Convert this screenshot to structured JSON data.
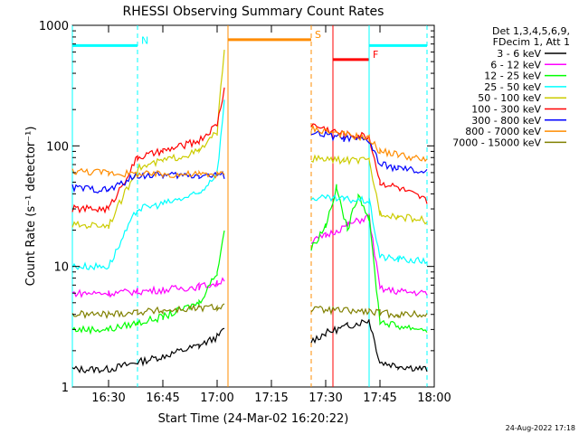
{
  "chart_data": {
    "type": "line",
    "title": "RHESSI Observing Summary Count Rates",
    "xlabel": "Start Time (24-Mar-02 16:20:22)",
    "ylabel": "Count Rate (s⁻¹ detector⁻¹)",
    "y_scale": "log",
    "ylim": [
      1,
      1000
    ],
    "xlim": [
      "16:20",
      "18:00"
    ],
    "x_ticks": [
      "16:30",
      "16:45",
      "17:00",
      "17:15",
      "17:30",
      "17:45",
      "18:00"
    ],
    "y_ticks": [
      "1",
      "10",
      "100",
      "1000"
    ],
    "grid": false,
    "legend_header": [
      "Det 1,3,4,5,6,9,",
      "FDecim 1, Att 1"
    ],
    "legend_position": "right",
    "series": [
      {
        "name": "3 - 6 keV",
        "color": "#000000",
        "x": [
          "16:20",
          "16:30",
          "16:38",
          "16:45",
          "16:55",
          "17:00",
          "17:02",
          "17:26",
          "17:30",
          "17:36",
          "17:42",
          "17:45",
          "17:50",
          "17:58"
        ],
        "y": [
          1.4,
          1.4,
          1.6,
          1.8,
          2.2,
          2.6,
          3,
          2.4,
          2.8,
          3.2,
          3.6,
          1.6,
          1.5,
          1.4
        ]
      },
      {
        "name": "6 - 12 keV",
        "color": "#ff00ff",
        "x": [
          "16:20",
          "16:30",
          "16:38",
          "16:45",
          "16:55",
          "17:00",
          "17:02",
          "17:26",
          "17:30",
          "17:36",
          "17:42",
          "17:45",
          "17:50",
          "17:58"
        ],
        "y": [
          6,
          6,
          6.2,
          6.4,
          6.8,
          7.2,
          8,
          16,
          18,
          22,
          26,
          6.5,
          6.2,
          6
        ]
      },
      {
        "name": "12 - 25 keV",
        "color": "#00ff00",
        "x": [
          "16:20",
          "16:30",
          "16:38",
          "16:45",
          "16:55",
          "17:00",
          "17:02",
          "17:26",
          "17:30",
          "17:33",
          "17:36",
          "17:39",
          "17:42",
          "17:45",
          "17:50",
          "17:58"
        ],
        "y": [
          3,
          3,
          3.4,
          3.8,
          5,
          9,
          20,
          14,
          22,
          45,
          20,
          40,
          25,
          3.5,
          3.2,
          3
        ]
      },
      {
        "name": "25 - 50 keV",
        "color": "#00ffff",
        "x": [
          "16:20",
          "16:30",
          "16:38",
          "16:45",
          "16:55",
          "17:00",
          "17:02",
          "17:26",
          "17:35",
          "17:42",
          "17:45",
          "17:50",
          "17:58"
        ],
        "y": [
          10,
          10,
          30,
          33,
          40,
          60,
          230,
          37,
          36,
          35,
          12,
          11.5,
          11
        ]
      },
      {
        "name": "50 - 100 keV",
        "color": "#cccc00",
        "x": [
          "16:20",
          "16:30",
          "16:38",
          "16:45",
          "16:55",
          "17:00",
          "17:02",
          "17:26",
          "17:35",
          "17:42",
          "17:45",
          "17:50",
          "17:58"
        ],
        "y": [
          22,
          22,
          65,
          75,
          90,
          130,
          650,
          78,
          76,
          75,
          28,
          26,
          24
        ]
      },
      {
        "name": "100 - 300 keV",
        "color": "#ff0000",
        "x": [
          "16:20",
          "16:30",
          "16:38",
          "16:45",
          "16:55",
          "17:00",
          "17:02",
          "17:26",
          "17:35",
          "17:42",
          "17:45",
          "17:50",
          "17:58"
        ],
        "y": [
          30,
          30,
          80,
          90,
          110,
          150,
          300,
          150,
          125,
          120,
          50,
          45,
          35
        ]
      },
      {
        "name": "300 - 800 keV",
        "color": "#0000ff",
        "x": [
          "16:20",
          "16:30",
          "16:38",
          "16:45",
          "16:55",
          "17:00",
          "17:02",
          "17:26",
          "17:35",
          "17:42",
          "17:45",
          "17:50",
          "17:58"
        ],
        "y": [
          45,
          43,
          57,
          57,
          57,
          57,
          57,
          130,
          115,
          110,
          70,
          65,
          60
        ]
      },
      {
        "name": "800 - 7000 keV",
        "color": "#ff8c00",
        "x": [
          "16:20",
          "16:30",
          "16:38",
          "16:45",
          "16:55",
          "17:00",
          "17:02",
          "17:26",
          "17:35",
          "17:42",
          "17:45",
          "17:50",
          "17:58"
        ],
        "y": [
          62,
          60,
          58,
          58,
          58,
          58,
          58,
          140,
          125,
          115,
          90,
          85,
          75
        ]
      },
      {
        "name": "7000 - 15000 keV",
        "color": "#808000",
        "x": [
          "16:20",
          "16:30",
          "16:38",
          "16:45",
          "16:55",
          "17:00",
          "17:02",
          "17:26",
          "17:35",
          "17:42",
          "17:45",
          "17:50",
          "17:58"
        ],
        "y": [
          4,
          4,
          4.2,
          4.3,
          4.5,
          4.6,
          4.7,
          4.4,
          4.3,
          4.2,
          4.1,
          4,
          4
        ]
      }
    ],
    "annotations": [
      {
        "label": "N",
        "color": "#00ffff",
        "x_range": [
          "16:20",
          "16:38"
        ],
        "y": 680
      },
      {
        "label": "S",
        "color": "#ff8c00",
        "x_range": [
          "17:03",
          "17:26"
        ],
        "y": 760
      },
      {
        "label": "F",
        "color": "#ff0000",
        "x_range": [
          "17:32",
          "17:42"
        ],
        "y": 520
      },
      {
        "label": "",
        "color": "#00ffff",
        "x_range": [
          "17:42",
          "17:58"
        ],
        "y": 680
      }
    ]
  },
  "footer_date": "24-Aug-2022 17:18"
}
